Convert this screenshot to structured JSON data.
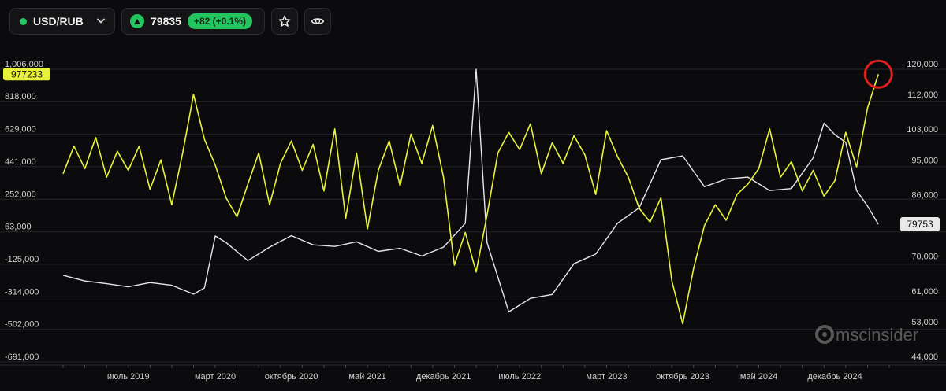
{
  "header": {
    "ticker": "USD/RUB",
    "price": "79835",
    "change": "+82 (+0.1%)",
    "icons": {
      "live": "live-dot-icon",
      "dropdown": "chevron-down-icon",
      "trend": "triangle-up-icon",
      "favorite": "star-icon",
      "watch": "eye-icon"
    },
    "colors": {
      "up": "#22c55e"
    }
  },
  "watermark": {
    "text": "mscinsider",
    "icon": "msc-logo-icon"
  },
  "chart_data": {
    "type": "line",
    "x_tick_labels": [
      "июль 2019",
      "март 2020",
      "октябрь 2020",
      "май 2021",
      "декабрь 2021",
      "июль 2022",
      "март 2023",
      "октябрь 2023",
      "май 2024",
      "декабрь 2024"
    ],
    "x_ticks": [
      "2019-07",
      "2020-03",
      "2020-10",
      "2021-05",
      "2021-12",
      "2022-07",
      "2023-03",
      "2023-10",
      "2024-05",
      "2024-12"
    ],
    "x_range": [
      "2019-01",
      "2025-05"
    ],
    "left_axis": {
      "ticks": [
        1006000,
        818000,
        629000,
        441000,
        252000,
        63000,
        -125000,
        -314000,
        -502000,
        -691000
      ],
      "tick_labels": [
        "1,006,000",
        "818,000",
        "629,000",
        "441,000",
        "252,000",
        "63,000",
        "-125,000",
        "-314,000",
        "-502,000",
        "-691,000"
      ],
      "ylim": [
        -691000,
        1006000
      ]
    },
    "right_axis": {
      "ticks": [
        120000,
        112000,
        103000,
        95000,
        86000,
        78000,
        70000,
        61000,
        53000,
        44000
      ],
      "tick_labels": [
        "120,000",
        "112,000",
        "103,000",
        "95,000",
        "86,000",
        "",
        "70,000",
        "61,000",
        "53,000",
        "44,000"
      ],
      "ylim": [
        44000,
        120000
      ]
    },
    "series": [
      {
        "axis": "left",
        "color": "#e8f23a",
        "last_value_label": "977233",
        "points": [
          [
            "2019-01",
            400000
          ],
          [
            "2019-02",
            560000
          ],
          [
            "2019-03",
            430000
          ],
          [
            "2019-04",
            610000
          ],
          [
            "2019-05",
            380000
          ],
          [
            "2019-06",
            530000
          ],
          [
            "2019-07",
            420000
          ],
          [
            "2019-08",
            560000
          ],
          [
            "2019-09",
            310000
          ],
          [
            "2019-10",
            480000
          ],
          [
            "2019-11",
            220000
          ],
          [
            "2019-12",
            520000
          ],
          [
            "2020-01",
            860000
          ],
          [
            "2020-02",
            600000
          ],
          [
            "2020-03",
            450000
          ],
          [
            "2020-04",
            260000
          ],
          [
            "2020-05",
            150000
          ],
          [
            "2020-06",
            340000
          ],
          [
            "2020-07",
            520000
          ],
          [
            "2020-08",
            220000
          ],
          [
            "2020-09",
            460000
          ],
          [
            "2020-10",
            590000
          ],
          [
            "2020-11",
            420000
          ],
          [
            "2020-12",
            570000
          ],
          [
            "2021-01",
            300000
          ],
          [
            "2021-02",
            660000
          ],
          [
            "2021-03",
            140000
          ],
          [
            "2021-04",
            520000
          ],
          [
            "2021-05",
            80000
          ],
          [
            "2021-06",
            420000
          ],
          [
            "2021-07",
            590000
          ],
          [
            "2021-08",
            330000
          ],
          [
            "2021-09",
            630000
          ],
          [
            "2021-10",
            460000
          ],
          [
            "2021-11",
            680000
          ],
          [
            "2021-12",
            380000
          ],
          [
            "2022-01",
            -130000
          ],
          [
            "2022-02",
            60000
          ],
          [
            "2022-03",
            -170000
          ],
          [
            "2022-04",
            160000
          ],
          [
            "2022-05",
            520000
          ],
          [
            "2022-06",
            640000
          ],
          [
            "2022-07",
            540000
          ],
          [
            "2022-08",
            690000
          ],
          [
            "2022-09",
            400000
          ],
          [
            "2022-10",
            580000
          ],
          [
            "2022-11",
            460000
          ],
          [
            "2022-12",
            620000
          ],
          [
            "2023-01",
            510000
          ],
          [
            "2023-02",
            280000
          ],
          [
            "2023-03",
            650000
          ],
          [
            "2023-04",
            500000
          ],
          [
            "2023-05",
            380000
          ],
          [
            "2023-06",
            200000
          ],
          [
            "2023-07",
            120000
          ],
          [
            "2023-08",
            260000
          ],
          [
            "2023-09",
            -220000
          ],
          [
            "2023-10",
            -470000
          ],
          [
            "2023-11",
            -150000
          ],
          [
            "2023-12",
            100000
          ],
          [
            "2024-01",
            220000
          ],
          [
            "2024-02",
            130000
          ],
          [
            "2024-03",
            280000
          ],
          [
            "2024-04",
            340000
          ],
          [
            "2024-05",
            430000
          ],
          [
            "2024-06",
            660000
          ],
          [
            "2024-07",
            380000
          ],
          [
            "2024-08",
            470000
          ],
          [
            "2024-09",
            300000
          ],
          [
            "2024-10",
            420000
          ],
          [
            "2024-11",
            270000
          ],
          [
            "2024-12",
            360000
          ],
          [
            "2025-01",
            640000
          ],
          [
            "2025-02",
            440000
          ],
          [
            "2025-03",
            780000
          ],
          [
            "2025-04",
            977233
          ]
        ]
      },
      {
        "axis": "right",
        "color": "#e6e6ea",
        "last_value_label": "79753",
        "points": [
          [
            "2019-01",
            66500
          ],
          [
            "2019-03",
            65000
          ],
          [
            "2019-05",
            64300
          ],
          [
            "2019-07",
            63500
          ],
          [
            "2019-09",
            64600
          ],
          [
            "2019-11",
            63900
          ],
          [
            "2020-01",
            61600
          ],
          [
            "2020-02",
            63200
          ],
          [
            "2020-03",
            76700
          ],
          [
            "2020-04",
            75000
          ],
          [
            "2020-06",
            70300
          ],
          [
            "2020-08",
            73800
          ],
          [
            "2020-10",
            76800
          ],
          [
            "2020-12",
            74400
          ],
          [
            "2021-02",
            74000
          ],
          [
            "2021-04",
            75200
          ],
          [
            "2021-06",
            72700
          ],
          [
            "2021-08",
            73500
          ],
          [
            "2021-10",
            71500
          ],
          [
            "2021-12",
            73800
          ],
          [
            "2022-02",
            80000
          ],
          [
            "2022-03",
            120000
          ],
          [
            "2022-04",
            75000
          ],
          [
            "2022-06",
            57000
          ],
          [
            "2022-08",
            60500
          ],
          [
            "2022-10",
            61500
          ],
          [
            "2022-12",
            69500
          ],
          [
            "2023-02",
            72000
          ],
          [
            "2023-04",
            80000
          ],
          [
            "2023-06",
            84000
          ],
          [
            "2023-08",
            96500
          ],
          [
            "2023-10",
            97500
          ],
          [
            "2023-12",
            89500
          ],
          [
            "2024-02",
            91500
          ],
          [
            "2024-04",
            92000
          ],
          [
            "2024-06",
            88500
          ],
          [
            "2024-08",
            89000
          ],
          [
            "2024-10",
            97000
          ],
          [
            "2024-11",
            106000
          ],
          [
            "2024-12",
            103000
          ],
          [
            "2025-01",
            101000
          ],
          [
            "2025-02",
            88500
          ],
          [
            "2025-03",
            84500
          ],
          [
            "2025-04",
            79753
          ]
        ]
      }
    ],
    "annotations": [
      {
        "type": "circle",
        "color": "#e11d1d",
        "date": "2025-04",
        "value": 977233,
        "axis": "left"
      }
    ]
  }
}
